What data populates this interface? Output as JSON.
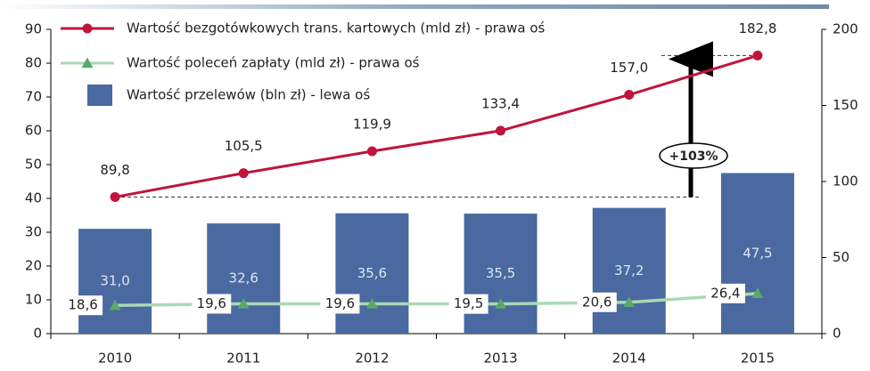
{
  "chart_data": {
    "type": "bar",
    "categories": [
      "2010",
      "2011",
      "2012",
      "2013",
      "2014",
      "2015"
    ],
    "series": [
      {
        "name": "Wartość bezgotówkowych trans. kartowych (mld zł) - prawa oś",
        "color": "#c0143c",
        "marker": "circle",
        "axis": "y2",
        "values": [
          89.8,
          105.5,
          119.9,
          133.4,
          157.0,
          182.8
        ],
        "value_labels": [
          "89,8",
          "105,5",
          "119,9",
          "133,4",
          "157,0",
          "182,8"
        ]
      },
      {
        "name": "Wartość poleceń zapłaty (mld zł) - prawa oś",
        "color": "#a9d9b4",
        "marker_color": "#5aa86a",
        "marker": "triangle",
        "axis": "y2",
        "values": [
          18.6,
          19.6,
          19.6,
          19.5,
          20.6,
          26.4
        ],
        "value_labels": [
          "18,6",
          "19,6",
          "19,6",
          "19,5",
          "20,6",
          "26,4"
        ]
      },
      {
        "name": "Wartość przelewów (bln zł) - lewa oś",
        "color": "#4a69a0",
        "values": [
          31.0,
          32.6,
          35.6,
          35.5,
          37.2,
          47.5
        ],
        "value_labels": [
          "31,0",
          "32,6",
          "35,6",
          "35,5",
          "37,2",
          "47,5"
        ]
      }
    ],
    "ylim": [
      0,
      90
    ],
    "yticks": [
      0,
      10,
      20,
      30,
      40,
      50,
      60,
      70,
      80,
      90
    ],
    "y2lim": [
      0,
      200
    ],
    "y2ticks": [
      0,
      50,
      100,
      150,
      200
    ],
    "annotation": "+103%"
  }
}
